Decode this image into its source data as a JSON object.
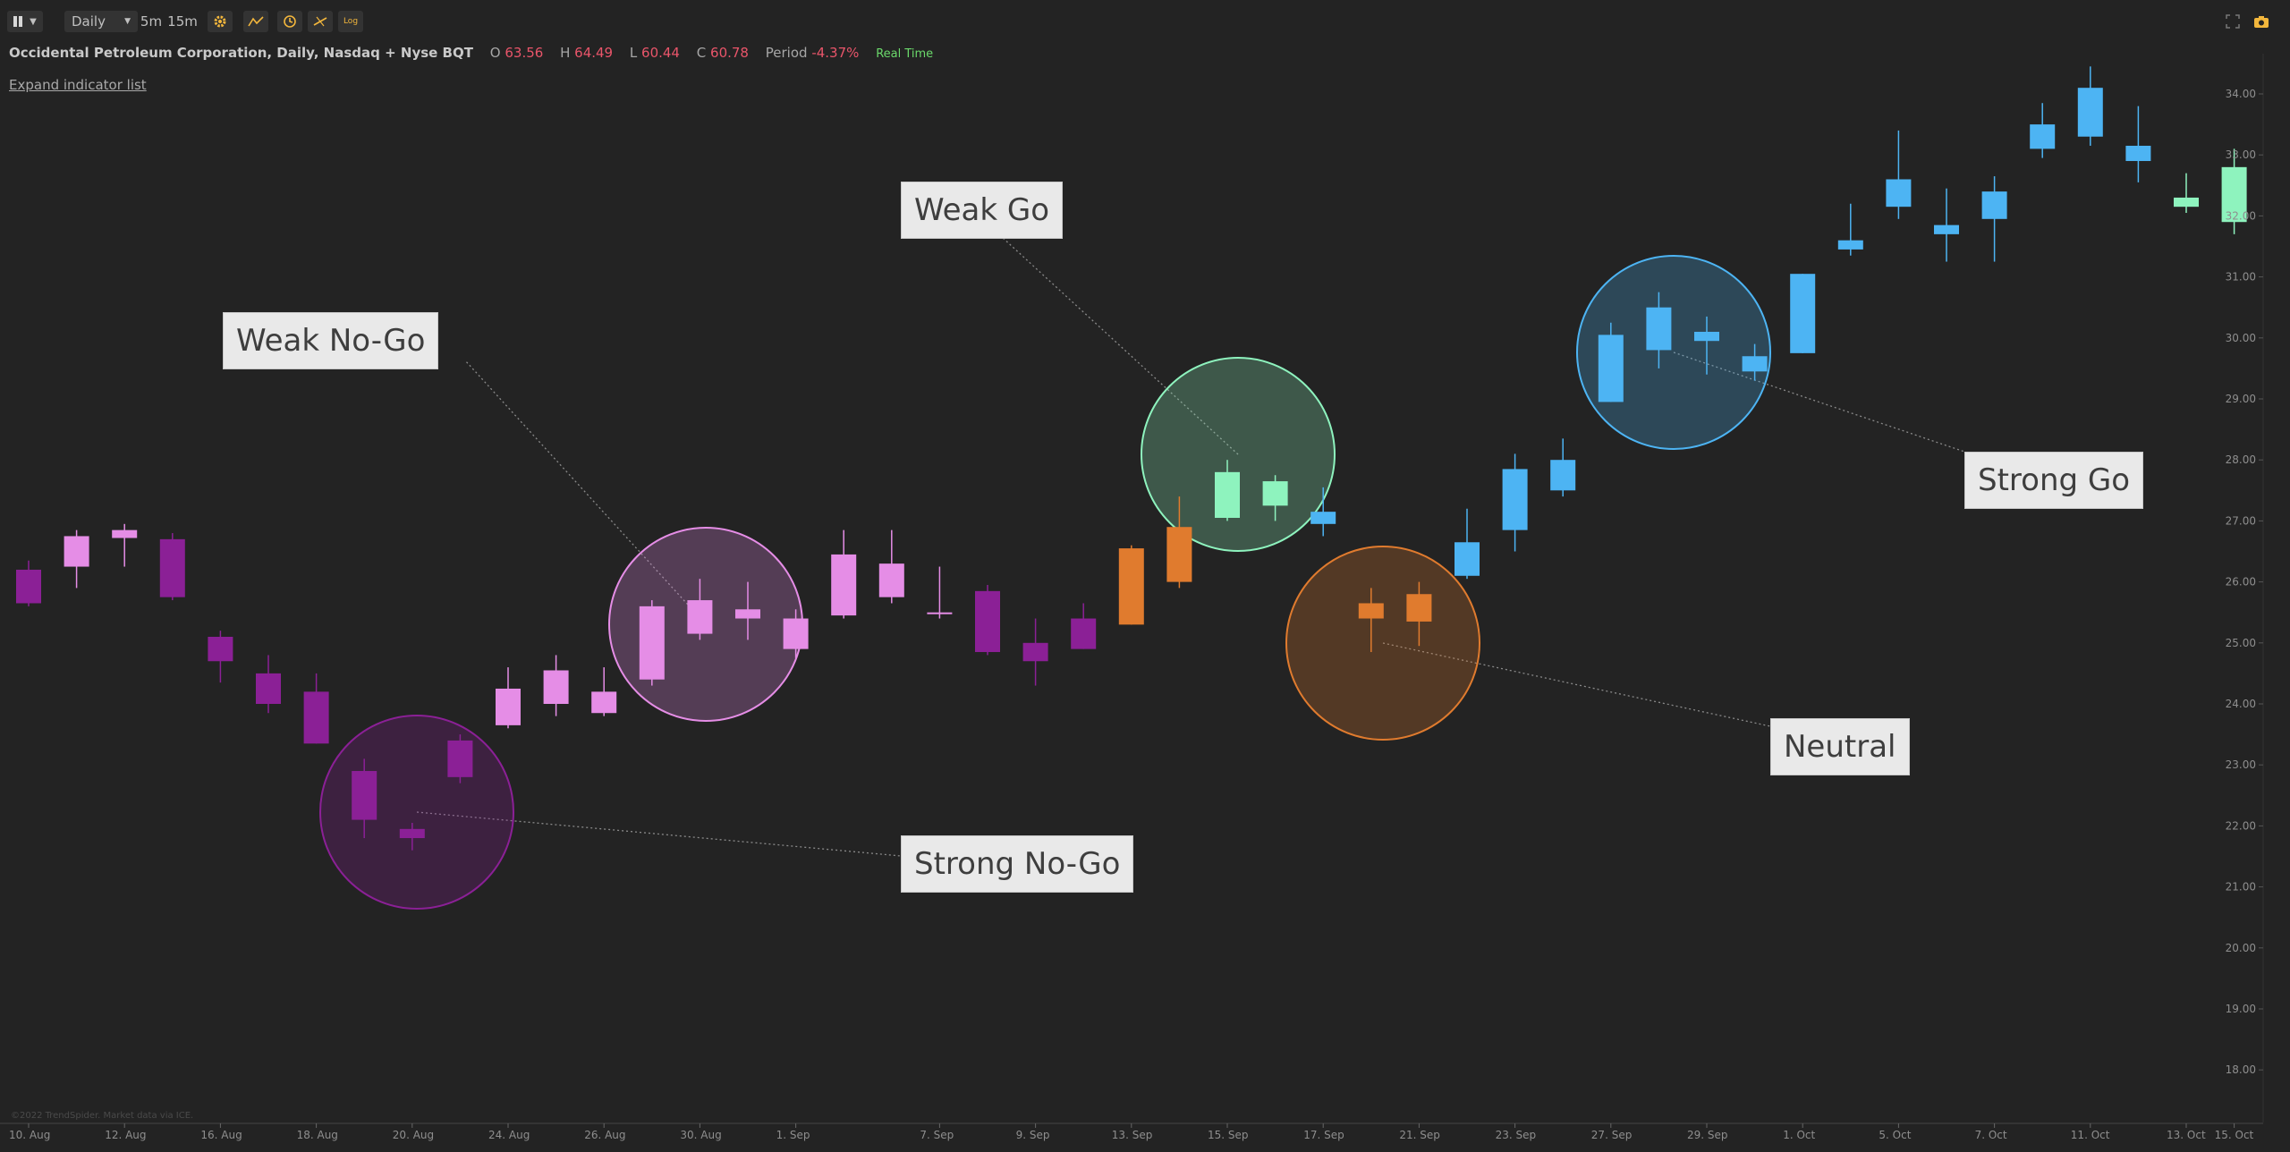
{
  "toolbar": {
    "interval_select": "Daily",
    "tf_5m": "5m",
    "tf_15m": "15m",
    "log_label": "Log",
    "icons": [
      "pause-icon",
      "dropdown-icon",
      "gear-icon",
      "indicator-icon",
      "clock-icon",
      "draw-tools-icon",
      "log-scale-icon",
      "fullscreen-icon",
      "camera-icon"
    ]
  },
  "legend": {
    "symbol": "Occidental Petroleum Corporation, Daily, Nasdaq + Nyse BQT",
    "o_label": "O",
    "o_value": "63.56",
    "h_label": "H",
    "h_value": "64.49",
    "l_label": "L",
    "l_value": "60.44",
    "c_label": "C",
    "c_value": "60.78",
    "period_label": "Period",
    "period_value": "-4.37%",
    "realtime": "Real Time"
  },
  "expand_indicators": "Expand indicator list",
  "copyright": "©2022 TrendSpider. Market data via ICE.",
  "colors": {
    "strong_nogo": "#8b2096",
    "weak_nogo": "#e58de6",
    "neutral": "#e07b2e",
    "weak_go": "#8ef3be",
    "strong_go": "#4db4f3"
  },
  "annotations": {
    "weak_nogo": "Weak No-Go",
    "weak_go": "Weak Go",
    "strong_go": "Strong Go",
    "neutral": "Neutral",
    "strong_nogo": "Strong No-Go"
  },
  "chart_data": {
    "type": "candlestick",
    "y_axis": {
      "range": [
        17.5,
        34.5
      ],
      "ticks": [
        "34.00",
        "33.00",
        "32.00",
        "31.00",
        "30.00",
        "29.00",
        "28.00",
        "27.00",
        "26.00",
        "25.00",
        "24.00",
        "23.00",
        "22.00",
        "21.00",
        "20.00",
        "19.00",
        "18.00"
      ]
    },
    "x_ticks": [
      {
        "label": "10. Aug",
        "i": 0
      },
      {
        "label": "12. Aug",
        "i": 2
      },
      {
        "label": "16. Aug",
        "i": 4
      },
      {
        "label": "18. Aug",
        "i": 6
      },
      {
        "label": "20. Aug",
        "i": 8
      },
      {
        "label": "24. Aug",
        "i": 10
      },
      {
        "label": "26. Aug",
        "i": 12
      },
      {
        "label": "30. Aug",
        "i": 14
      },
      {
        "label": "1. Sep",
        "i": 16
      },
      {
        "label": "7. Sep",
        "i": 19
      },
      {
        "label": "9. Sep",
        "i": 21
      },
      {
        "label": "13. Sep",
        "i": 23
      },
      {
        "label": "15. Sep",
        "i": 25
      },
      {
        "label": "17. Sep",
        "i": 27
      },
      {
        "label": "21. Sep",
        "i": 29
      },
      {
        "label": "23. Sep",
        "i": 31
      },
      {
        "label": "27. Sep",
        "i": 33
      },
      {
        "label": "29. Sep",
        "i": 35
      },
      {
        "label": "1. Oct",
        "i": 37
      },
      {
        "label": "5. Oct",
        "i": 39
      },
      {
        "label": "7. Oct",
        "i": 41
      },
      {
        "label": "11. Oct",
        "i": 43
      },
      {
        "label": "13. Oct",
        "i": 45
      },
      {
        "label": "15. Oct",
        "i": 46
      }
    ],
    "candles": [
      {
        "o": 26.2,
        "h": 26.35,
        "l": 25.6,
        "c": 25.65,
        "s": "strong_nogo"
      },
      {
        "o": 26.25,
        "h": 26.85,
        "l": 25.9,
        "c": 26.75,
        "s": "weak_nogo"
      },
      {
        "o": 26.72,
        "h": 26.95,
        "l": 26.25,
        "c": 26.85,
        "s": "weak_nogo"
      },
      {
        "o": 26.7,
        "h": 26.8,
        "l": 25.7,
        "c": 25.75,
        "s": "strong_nogo"
      },
      {
        "o": 25.1,
        "h": 25.2,
        "l": 24.35,
        "c": 24.7,
        "s": "strong_nogo"
      },
      {
        "o": 24.5,
        "h": 24.8,
        "l": 23.85,
        "c": 24.0,
        "s": "strong_nogo"
      },
      {
        "o": 24.2,
        "h": 24.5,
        "l": 23.35,
        "c": 23.35,
        "s": "strong_nogo"
      },
      {
        "o": 22.9,
        "h": 23.1,
        "l": 21.8,
        "c": 22.1,
        "s": "strong_nogo"
      },
      {
        "o": 21.95,
        "h": 22.05,
        "l": 21.6,
        "c": 21.8,
        "s": "strong_nogo"
      },
      {
        "o": 23.4,
        "h": 23.5,
        "l": 22.7,
        "c": 22.8,
        "s": "strong_nogo"
      },
      {
        "o": 23.65,
        "h": 24.6,
        "l": 23.6,
        "c": 24.25,
        "s": "weak_nogo"
      },
      {
        "o": 24.0,
        "h": 24.8,
        "l": 23.8,
        "c": 24.55,
        "s": "weak_nogo"
      },
      {
        "o": 23.85,
        "h": 24.6,
        "l": 23.8,
        "c": 24.2,
        "s": "weak_nogo"
      },
      {
        "o": 24.4,
        "h": 25.7,
        "l": 24.3,
        "c": 25.6,
        "s": "weak_nogo"
      },
      {
        "o": 25.15,
        "h": 26.05,
        "l": 25.05,
        "c": 25.7,
        "s": "weak_nogo"
      },
      {
        "o": 25.4,
        "h": 26.0,
        "l": 25.05,
        "c": 25.55,
        "s": "weak_nogo"
      },
      {
        "o": 24.9,
        "h": 25.55,
        "l": 24.75,
        "c": 25.4,
        "s": "weak_nogo"
      },
      {
        "o": 25.45,
        "h": 26.85,
        "l": 25.4,
        "c": 26.45,
        "s": "weak_nogo"
      },
      {
        "o": 25.75,
        "h": 26.85,
        "l": 25.65,
        "c": 26.3,
        "s": "weak_nogo"
      },
      {
        "o": 25.5,
        "h": 26.25,
        "l": 25.4,
        "c": 25.5,
        "s": "weak_nogo"
      },
      {
        "o": 25.85,
        "h": 25.95,
        "l": 24.8,
        "c": 24.85,
        "s": "strong_nogo"
      },
      {
        "o": 25.0,
        "h": 25.4,
        "l": 24.3,
        "c": 24.7,
        "s": "strong_nogo"
      },
      {
        "o": 25.4,
        "h": 25.65,
        "l": 24.9,
        "c": 24.9,
        "s": "strong_nogo"
      },
      {
        "o": 25.3,
        "h": 26.6,
        "l": 25.3,
        "c": 26.55,
        "s": "neutral"
      },
      {
        "o": 26.0,
        "h": 27.4,
        "l": 25.9,
        "c": 26.9,
        "s": "neutral"
      },
      {
        "o": 27.05,
        "h": 28.0,
        "l": 27.0,
        "c": 27.8,
        "s": "weak_go"
      },
      {
        "o": 27.25,
        "h": 27.75,
        "l": 27.0,
        "c": 27.65,
        "s": "weak_go"
      },
      {
        "o": 26.95,
        "h": 27.55,
        "l": 26.75,
        "c": 27.15,
        "s": "strong_go"
      },
      {
        "o": 25.4,
        "h": 25.9,
        "l": 24.85,
        "c": 25.65,
        "s": "neutral"
      },
      {
        "o": 25.35,
        "h": 26.0,
        "l": 24.95,
        "c": 25.8,
        "s": "neutral"
      },
      {
        "o": 26.1,
        "h": 27.2,
        "l": 26.05,
        "c": 26.65,
        "s": "strong_go"
      },
      {
        "o": 26.85,
        "h": 28.1,
        "l": 26.5,
        "c": 27.85,
        "s": "strong_go"
      },
      {
        "o": 27.5,
        "h": 28.35,
        "l": 27.4,
        "c": 28.0,
        "s": "strong_go"
      },
      {
        "o": 28.95,
        "h": 30.25,
        "l": 28.95,
        "c": 30.05,
        "s": "strong_go"
      },
      {
        "o": 29.8,
        "h": 30.75,
        "l": 29.5,
        "c": 30.5,
        "s": "strong_go"
      },
      {
        "o": 29.95,
        "h": 30.35,
        "l": 29.4,
        "c": 30.1,
        "s": "strong_go"
      },
      {
        "o": 29.45,
        "h": 29.9,
        "l": 29.3,
        "c": 29.7,
        "s": "strong_go"
      },
      {
        "o": 29.75,
        "h": 31.05,
        "l": 29.75,
        "c": 31.05,
        "s": "strong_go"
      },
      {
        "o": 31.45,
        "h": 32.2,
        "l": 31.35,
        "c": 31.6,
        "s": "strong_go"
      },
      {
        "o": 32.15,
        "h": 33.4,
        "l": 31.95,
        "c": 32.6,
        "s": "strong_go"
      },
      {
        "o": 31.7,
        "h": 32.45,
        "l": 31.25,
        "c": 31.85,
        "s": "strong_go"
      },
      {
        "o": 31.95,
        "h": 32.65,
        "l": 31.25,
        "c": 32.4,
        "s": "strong_go"
      },
      {
        "o": 33.1,
        "h": 33.85,
        "l": 32.95,
        "c": 33.5,
        "s": "strong_go"
      },
      {
        "o": 33.3,
        "h": 34.45,
        "l": 33.15,
        "c": 34.1,
        "s": "strong_go"
      },
      {
        "o": 32.9,
        "h": 33.8,
        "l": 32.55,
        "c": 33.15,
        "s": "strong_go"
      },
      {
        "o": 32.15,
        "h": 32.7,
        "l": 32.05,
        "c": 32.3,
        "s": "weak_go"
      },
      {
        "o": 31.9,
        "h": 33.1,
        "l": 31.7,
        "c": 32.8,
        "s": "weak_go"
      }
    ]
  }
}
